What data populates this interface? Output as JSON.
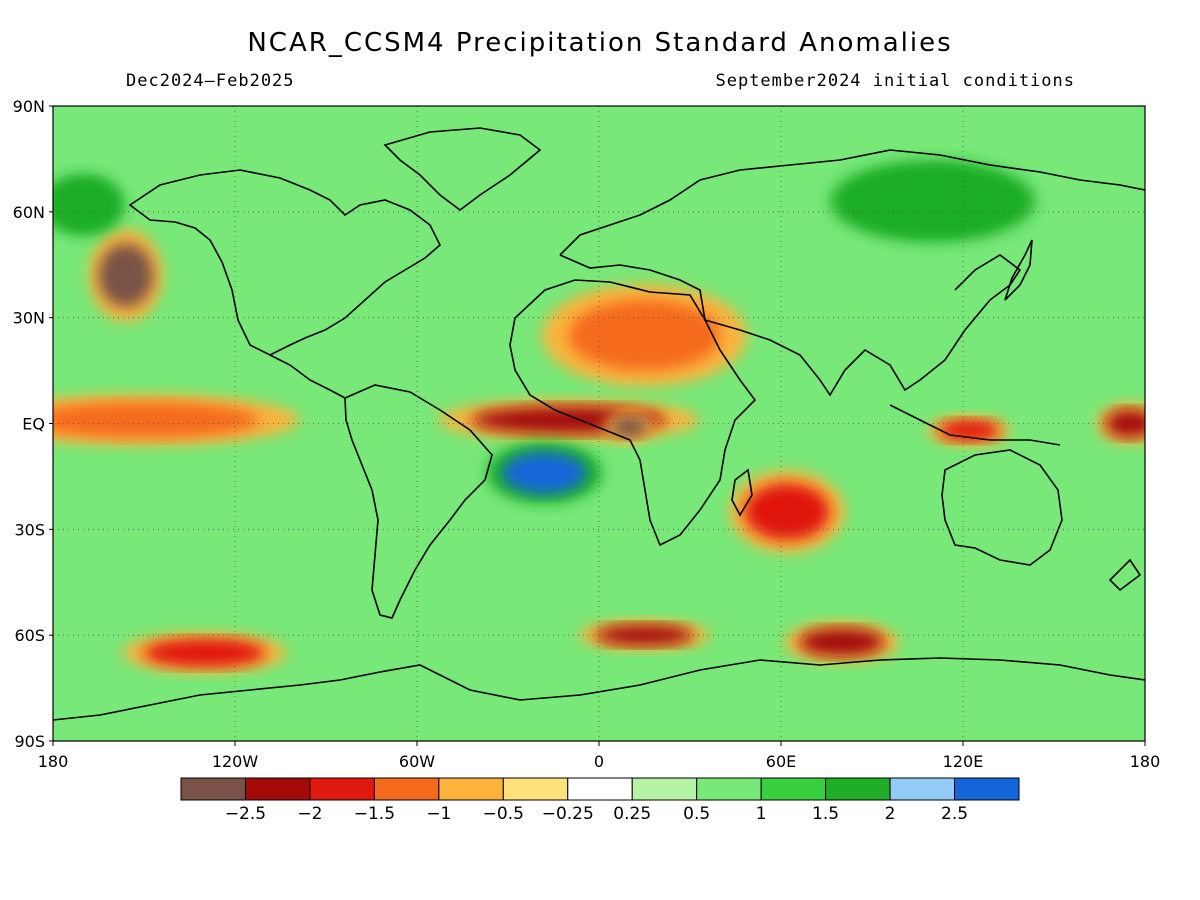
{
  "title": "NCAR_CCSM4 Precipitation Standard Anomalies",
  "subtitle_left": "Dec2024–Feb2025",
  "subtitle_right": "September2024 initial conditions",
  "map": {
    "projection": "cylindrical-equidistant",
    "lon_range": [
      -180,
      180
    ],
    "lat_range": [
      -90,
      90
    ],
    "grid_lines": "dotted",
    "coastlines": true
  },
  "axes": {
    "lat_labels": [
      "90N",
      "60N",
      "30N",
      "EQ",
      "30S",
      "60S",
      "90S"
    ],
    "lat_values": [
      90,
      60,
      30,
      0,
      -30,
      -60,
      -90
    ],
    "lon_labels": [
      "180",
      "120W",
      "60W",
      "0",
      "60E",
      "120E",
      "180"
    ],
    "lon_values": [
      -180,
      -120,
      -60,
      0,
      60,
      120,
      180
    ]
  },
  "colorbar": {
    "colors": [
      "#7a5247",
      "#a40a07",
      "#e0190e",
      "#f56a1c",
      "#fbb33c",
      "#fde27a",
      "#ffffff",
      "#b7f3a4",
      "#78e879",
      "#39d040",
      "#1fae25",
      "#92cbf6",
      "#1466d8"
    ],
    "labels": [
      "−2.5",
      "−2",
      "−1.5",
      "−1",
      "−0.5",
      "−0.25",
      "0.25",
      "0.5",
      "1",
      "1.5",
      "2",
      "2.5"
    ]
  },
  "features": [
    {
      "name": "equatorial-pacific-dry-band",
      "type": "dry",
      "lon": -150,
      "lat": 1,
      "rx": 38,
      "ry": 5,
      "level": "-1"
    },
    {
      "name": "equatorial-atlantic-dry-band",
      "type": "dry",
      "lon": -10,
      "lat": 1,
      "rx": 32,
      "ry": 4,
      "level": "-2"
    },
    {
      "name": "central-africa-dry-core",
      "type": "dry",
      "lon": 10,
      "lat": -1,
      "rx": 6,
      "ry": 3,
      "level": "-2.5"
    },
    {
      "name": "north-pacific-dry-core",
      "type": "dry",
      "lon": -156,
      "lat": 42,
      "rx": 9,
      "ry": 9,
      "level": "-2.5"
    },
    {
      "name": "sahara-arabia-dry-region",
      "type": "dry",
      "lon": 15,
      "lat": 25,
      "rx": 25,
      "ry": 10,
      "level": "-1"
    },
    {
      "name": "south-indian-ocean-dry-region",
      "type": "dry",
      "lon": 62,
      "lat": -25,
      "rx": 14,
      "ry": 8,
      "level": "-1.5"
    },
    {
      "name": "southern-ocean-dry-band-atlantic",
      "type": "dry",
      "lon": 15,
      "lat": -60,
      "rx": 16,
      "ry": 3,
      "level": "-2"
    },
    {
      "name": "southern-ocean-dry-band-indian",
      "type": "dry",
      "lon": 80,
      "lat": -62,
      "rx": 14,
      "ry": 4,
      "level": "-2"
    },
    {
      "name": "southern-ocean-dry-band-pacific",
      "type": "dry",
      "lon": -130,
      "lat": -65,
      "rx": 20,
      "ry": 4,
      "level": "-1.5"
    },
    {
      "name": "maritime-continent-dry-region",
      "type": "dry",
      "lon": 122,
      "lat": -2,
      "rx": 10,
      "ry": 3,
      "level": "-1.5"
    },
    {
      "name": "west-pacific-dry-region",
      "type": "dry",
      "lon": 175,
      "lat": 0,
      "rx": 8,
      "ry": 4,
      "level": "-2"
    },
    {
      "name": "south-atlantic-wet-region",
      "type": "wet",
      "lon": -18,
      "lat": -14,
      "rx": 14,
      "ry": 6,
      "level": "2.5"
    },
    {
      "name": "north-pacific-wet-region",
      "type": "wet",
      "lon": -170,
      "lat": 62,
      "rx": 10,
      "ry": 6,
      "level": "1.5"
    },
    {
      "name": "siberia-wet-region",
      "type": "wet",
      "lon": 110,
      "lat": 63,
      "rx": 25,
      "ry": 8,
      "level": "1.5"
    }
  ]
}
